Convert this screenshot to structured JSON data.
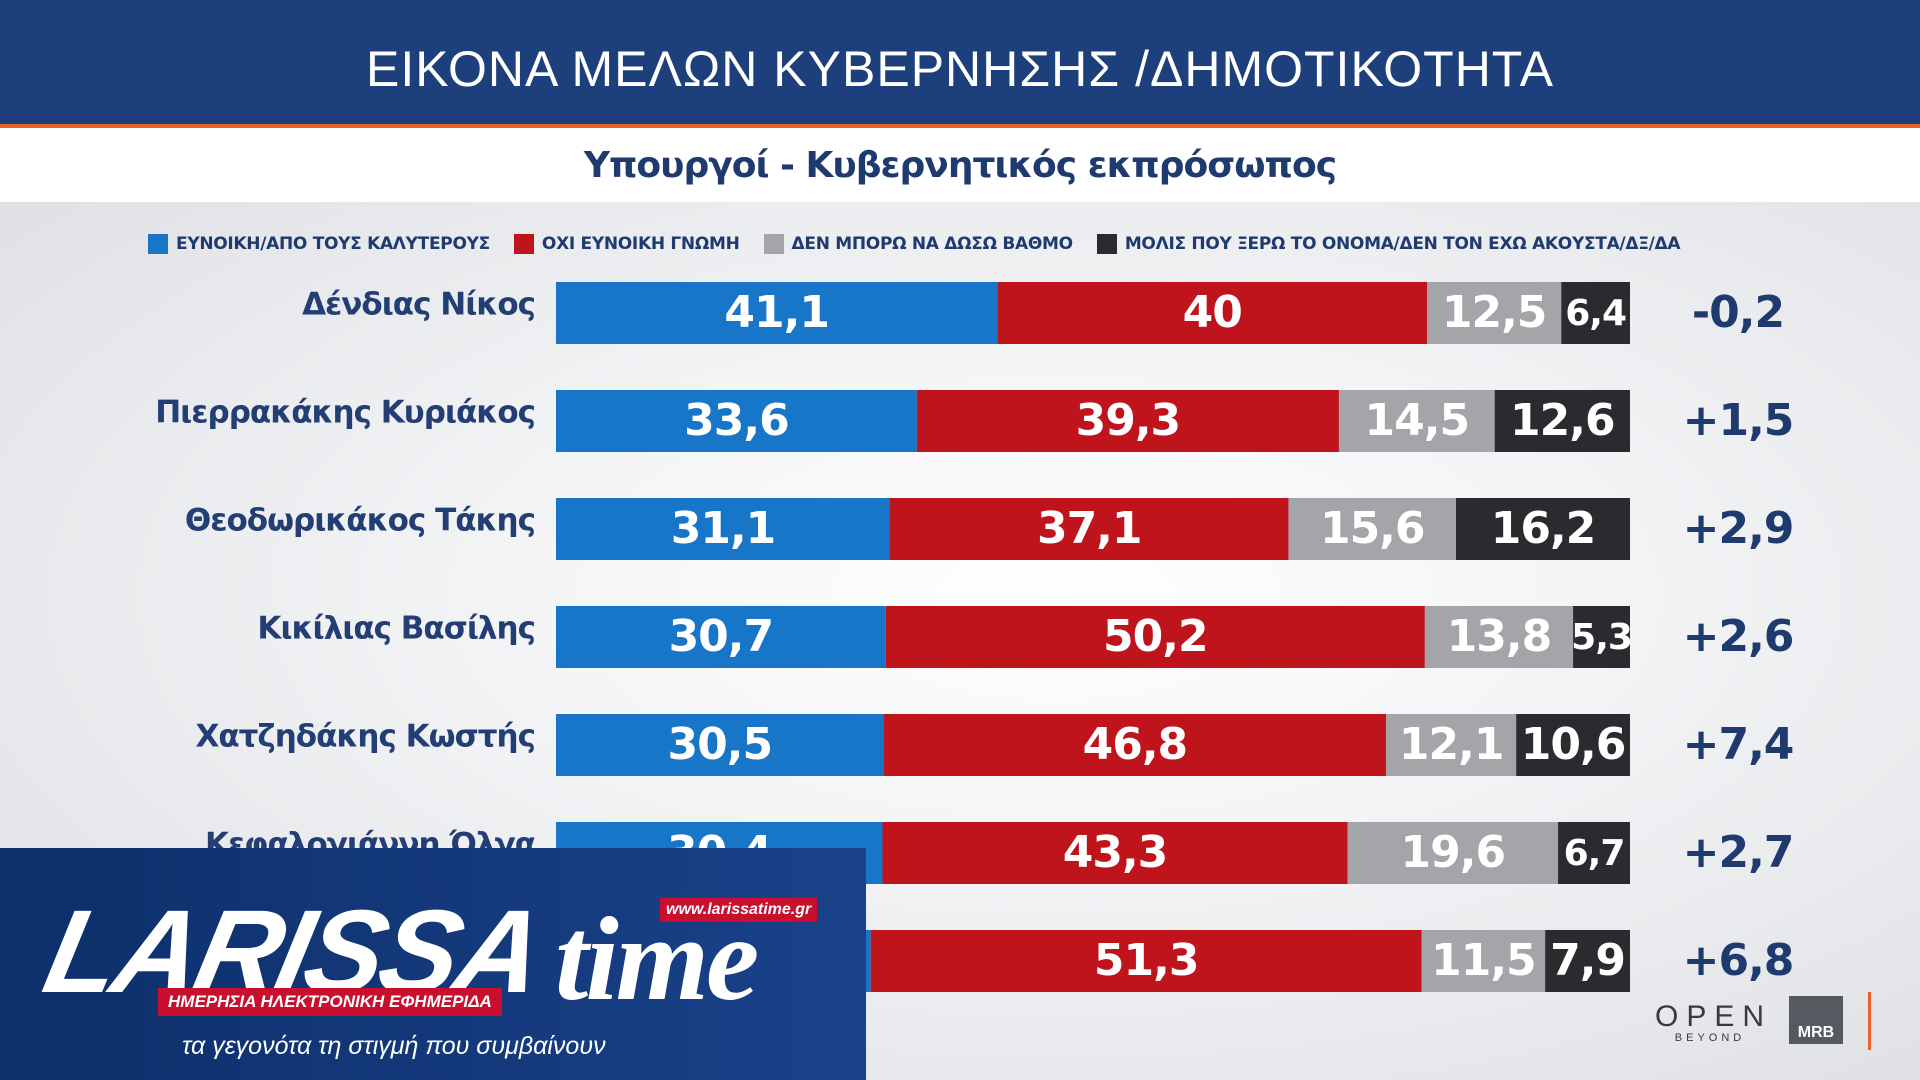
{
  "title": "ΕΙΚΟΝΑ ΜΕΛΩΝ ΚΥΒΕΡΝΗΣΗΣ /ΔΗΜΟΤΙΚΟΤΗΤΑ",
  "subtitle": "Υπουργοί - Κυβερνητικός εκπρόσωπος",
  "colors": {
    "favorable": "#1876c9",
    "unfavorable": "#c0141d",
    "cannot_rate": "#a3a5a8",
    "unknown": "#2a2b2e",
    "header": "#1d3f7c",
    "accent": "#e8622a"
  },
  "legend": [
    {
      "label": "ΕΥΝΟΙΚΗ/ΑΠΟ ΤΟΥΣ ΚΑΛΥΤΕΡΟΥΣ",
      "color": "#1876c9"
    },
    {
      "label": "ΟΧΙ ΕΥΝΟΙΚΗ ΓΝΩΜΗ",
      "color": "#c0141d"
    },
    {
      "label": "ΔΕΝ ΜΠΟΡΩ ΝΑ ΔΩΣΩ ΒΑΘΜΟ",
      "color": "#a3a5a8"
    },
    {
      "label": "ΜΟΛΙΣ ΠΟΥ ΞΕΡΩ ΤΟ ΟΝΟΜΑ/ΔΕΝ ΤΟΝ ΕΧΩ ΑΚΟΥΣΤΑ/ΔΞ/ΔΑ",
      "color": "#2a2b2e"
    }
  ],
  "chart_data": {
    "type": "bar",
    "orientation": "horizontal-stacked",
    "title": "Υπουργοί - Κυβερνητικός εκπρόσωπος",
    "categories": [
      "Δένδιας Νίκος",
      "Πιερρακάκης Κυριάκος",
      "Θεοδωρικάκος Τάκης",
      "Κικίλιας Βασίλης",
      "Χατζηδάκης Κωστής",
      "Κεφαλογιάννη Όλγα",
      ""
    ],
    "series": [
      {
        "name": "ΕΥΝΟΙΚΗ/ΑΠΟ ΤΟΥΣ ΚΑΛΥΤΕΡΟΥΣ",
        "values": [
          41.1,
          33.6,
          31.1,
          30.7,
          30.5,
          30.4,
          29.3
        ],
        "labels": [
          "41,1",
          "33,6",
          "31,1",
          "30,7",
          "30,5",
          "30,4",
          ""
        ]
      },
      {
        "name": "ΟΧΙ ΕΥΝΟΙΚΗ ΓΝΩΜΗ",
        "values": [
          40,
          39.3,
          37.1,
          50.2,
          46.8,
          43.3,
          51.3
        ],
        "labels": [
          "40",
          "39,3",
          "37,1",
          "50,2",
          "46,8",
          "43,3",
          "51,3"
        ]
      },
      {
        "name": "ΔΕΝ ΜΠΟΡΩ ΝΑ ΔΩΣΩ ΒΑΘΜΟ",
        "values": [
          12.5,
          14.5,
          15.6,
          13.8,
          12.1,
          19.6,
          11.5
        ],
        "labels": [
          "12,5",
          "14,5",
          "15,6",
          "13,8",
          "12,1",
          "19,6",
          "11,5"
        ]
      },
      {
        "name": "ΜΟΛΙΣ ΠΟΥ ΞΕΡΩ ΤΟ ΟΝΟΜΑ/ΔΕΝ ΤΟΝ ΕΧΩ ΑΚΟΥΣΤΑ/ΔΞ/ΔΑ",
        "values": [
          6.4,
          12.6,
          16.2,
          5.3,
          10.6,
          6.7,
          7.9
        ],
        "labels": [
          "6,4",
          "12,6",
          "16,2",
          "5,3",
          "10,6",
          "6,7",
          "7,9"
        ]
      }
    ],
    "change": [
      "-0,2",
      "+1,5",
      "+2,9",
      "+2,6",
      "+7,4",
      "+2,7",
      "+6,8"
    ],
    "xlim": [
      0,
      100
    ],
    "grid": false,
    "legend_position": "top"
  },
  "logo": {
    "main": "LARISSA",
    "time": "time",
    "url": "www.larissatime.gr",
    "badge": "ΗΜΕΡΗΣΙΑ ΗΛΕΚΤΡΟΝΙΚΗ ΕΦΗΜΕΡΙΔΑ",
    "tagline": "τα γεγονότα τη στιγμή που συμβαίνουν"
  },
  "open_logo": {
    "text": "OPEN",
    "sub": "BEYOND"
  },
  "mrb_logo": "MRB"
}
